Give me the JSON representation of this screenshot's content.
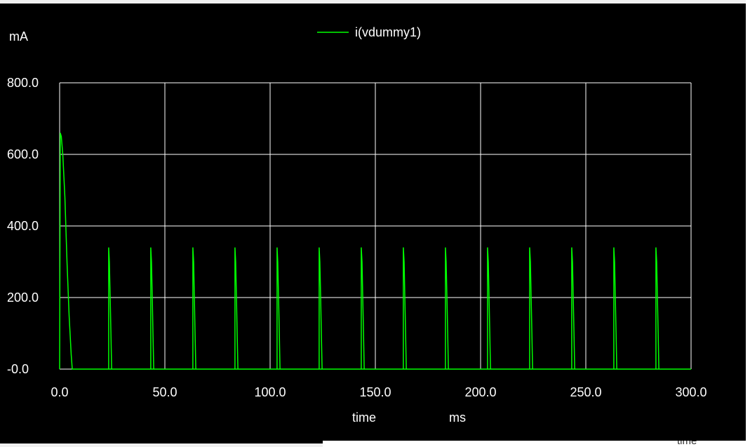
{
  "chart_data": {
    "type": "line",
    "unit_label": "mA",
    "legend": "i(vdummy1)",
    "xlabel": "time",
    "xunit": "ms",
    "xlim": [
      0,
      300
    ],
    "ylim": [
      0,
      800
    ],
    "xticks": [
      "0.0",
      "50.0",
      "100.0",
      "150.0",
      "200.0",
      "250.0",
      "300.0"
    ],
    "yticks": [
      "-0.0",
      "200.0",
      "400.0",
      "600.0",
      "800.0"
    ],
    "grid": true,
    "legend_position": "top-center",
    "series": [
      {
        "name": "i(vdummy1)",
        "color": "#00ff00",
        "x": [
          0,
          0.3,
          0.8,
          1.5,
          2.5,
          3.5,
          4.5,
          5.5,
          6.0,
          300
        ],
        "y": [
          0,
          660,
          650,
          600,
          480,
          300,
          150,
          40,
          0,
          0
        ],
        "pulses": {
          "starts": [
            23.3,
            43.3,
            63.3,
            83.3,
            103.3,
            123.3,
            143.3,
            163.3,
            183.3,
            203.3,
            223.3,
            243.3,
            263.3,
            283.3
          ],
          "peak": 340,
          "width_ms": 1.4
        }
      }
    ]
  },
  "window": {
    "clipped_text": "time"
  }
}
